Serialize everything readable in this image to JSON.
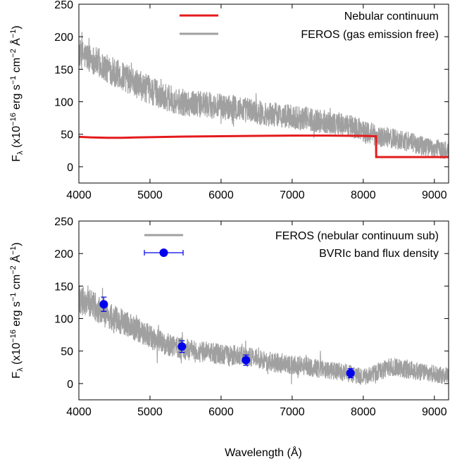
{
  "chart_data": [
    {
      "type": "line",
      "xlabel": "",
      "ylabel": "F_λ (x10^-16 erg s^-1 cm^-2 Å^-1)",
      "ylabel_parts": {
        "f": "F",
        "lambda": "λ",
        "open": " (x10",
        "e1": "−16",
        "erg": " erg s",
        "e2": "−1",
        "cm": " cm",
        "e3": "−2",
        "ang": " Å",
        "e4": "−1",
        "close": ")"
      },
      "xlim": [
        4000,
        9200
      ],
      "ylim": [
        -25,
        250
      ],
      "xticks": [
        4000,
        5000,
        6000,
        7000,
        8000,
        9000
      ],
      "yticks": [
        0,
        50,
        100,
        150,
        200,
        250
      ],
      "legend_position": "top-right",
      "legend": [
        "Nebular continuum",
        "FEROS (gas emission free)"
      ],
      "series": [
        {
          "name": "Nebular continuum",
          "color": "#e41a1c",
          "x": [
            4000,
            4200,
            4400,
            4600,
            4800,
            5000,
            5500,
            6000,
            6500,
            7000,
            7500,
            8000,
            8180,
            8182,
            8500,
            9000,
            9200
          ],
          "y": [
            46,
            45,
            44.5,
            44.5,
            45,
            45.5,
            46.5,
            47,
            47.5,
            48,
            48,
            47.5,
            47,
            15,
            15,
            15,
            15
          ]
        },
        {
          "name": "FEROS (gas emission free)",
          "color": "#a0a0a0",
          "x": [
            4000,
            4200,
            4400,
            4600,
            4800,
            5000,
            5200,
            5400,
            5600,
            5800,
            6000,
            6200,
            6400,
            6600,
            6800,
            7000,
            7200,
            7400,
            7600,
            7800,
            8000,
            8200,
            8400,
            8600,
            8800,
            9000,
            9200
          ],
          "y": [
            175,
            165,
            150,
            140,
            128,
            118,
            108,
            100,
            97,
            95,
            92,
            90,
            87,
            82,
            80,
            76,
            74,
            70,
            67,
            63,
            56,
            47,
            44,
            40,
            33,
            28,
            25
          ],
          "noise": 22
        }
      ]
    },
    {
      "type": "line",
      "xlabel": "Wavelength (Å)",
      "ylabel": "F_λ (x10^-16 erg s^-1 cm^-2 Å^-1)",
      "ylabel_parts": {
        "f": "F",
        "lambda": "λ",
        "open": " (x10",
        "e1": "−16",
        "erg": " erg s",
        "e2": "−1",
        "cm": " cm",
        "e3": "−2",
        "ang": " Å",
        "e4": "−1",
        "close": ")"
      },
      "xlim": [
        4000,
        9200
      ],
      "ylim": [
        -25,
        250
      ],
      "xticks": [
        4000,
        5000,
        6000,
        7000,
        8000,
        9000
      ],
      "yticks": [
        0,
        50,
        100,
        150,
        200,
        250
      ],
      "legend_position": "top-right",
      "legend": [
        "FEROS (nebular continuum sub)",
        "BVRIc band flux density"
      ],
      "series": [
        {
          "name": "FEROS (nebular continuum sub)",
          "color": "#a0a0a0",
          "x": [
            4000,
            4200,
            4400,
            4600,
            4800,
            5000,
            5200,
            5400,
            5600,
            5800,
            6000,
            6200,
            6400,
            6600,
            6800,
            7000,
            7200,
            7400,
            7600,
            7800,
            8000,
            8200,
            8400,
            8600,
            8800,
            9000,
            9200
          ],
          "y": [
            130,
            120,
            105,
            95,
            83,
            73,
            62,
            55,
            50,
            48,
            45,
            43,
            40,
            35,
            32,
            28,
            27,
            22,
            20,
            16,
            10,
            18,
            26,
            22,
            18,
            15,
            12
          ],
          "noise": 22
        },
        {
          "name": "BVRIc band flux density",
          "type": "scatter",
          "color": "#0000ee",
          "x": [
            4350,
            5450,
            6350,
            7820
          ],
          "y": [
            122,
            57,
            36,
            16
          ],
          "yerr": [
            11,
            9,
            8,
            7
          ]
        }
      ]
    }
  ]
}
